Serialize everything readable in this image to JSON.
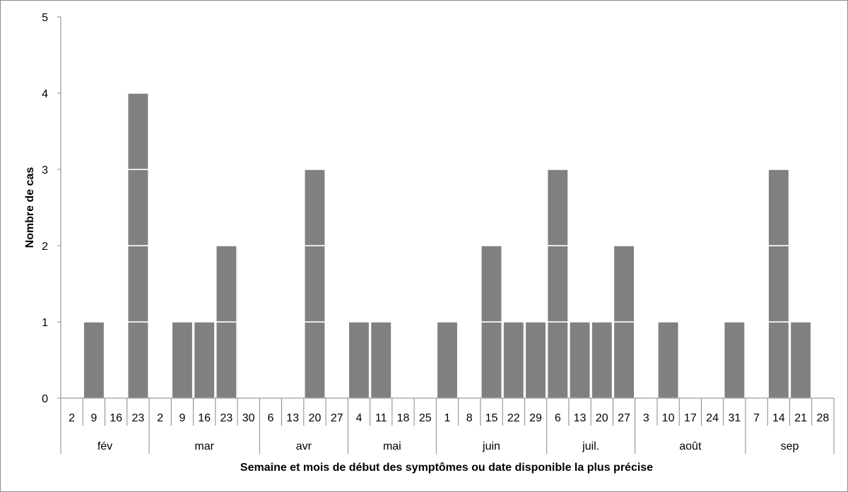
{
  "chart_data": {
    "type": "bar",
    "stacking": "stacked-unit-cases",
    "xlabel": "Semaine et mois de début des symptômes ou date disponible la plus précise",
    "ylabel": "Nombre de cas",
    "ylim": [
      0,
      5
    ],
    "yticks": [
      "0",
      "1",
      "2",
      "3",
      "4",
      "5"
    ],
    "grid": false,
    "bar_color": "#808080",
    "months": [
      {
        "label": "fév",
        "weeks": [
          "2",
          "9",
          "16",
          "23"
        ],
        "values": [
          0,
          1,
          0,
          4
        ]
      },
      {
        "label": "mar",
        "weeks": [
          "2",
          "9",
          "16",
          "23",
          "30"
        ],
        "values": [
          0,
          1,
          1,
          2,
          0
        ]
      },
      {
        "label": "avr",
        "weeks": [
          "6",
          "13",
          "20",
          "27"
        ],
        "values": [
          0,
          0,
          3,
          0
        ]
      },
      {
        "label": "mai",
        "weeks": [
          "4",
          "11",
          "18",
          "25"
        ],
        "values": [
          1,
          1,
          0,
          0
        ]
      },
      {
        "label": "juin",
        "weeks": [
          "1",
          "8",
          "15",
          "22",
          "29"
        ],
        "values": [
          1,
          0,
          2,
          1,
          1
        ]
      },
      {
        "label": "juil.",
        "weeks": [
          "6",
          "13",
          "20",
          "27"
        ],
        "values": [
          3,
          1,
          1,
          2
        ]
      },
      {
        "label": "août",
        "weeks": [
          "3",
          "10",
          "17",
          "24",
          "31"
        ],
        "values": [
          0,
          1,
          0,
          0,
          1
        ]
      },
      {
        "label": "sep",
        "weeks": [
          "7",
          "14",
          "21",
          "28"
        ],
        "values": [
          0,
          3,
          1,
          0
        ]
      }
    ]
  }
}
